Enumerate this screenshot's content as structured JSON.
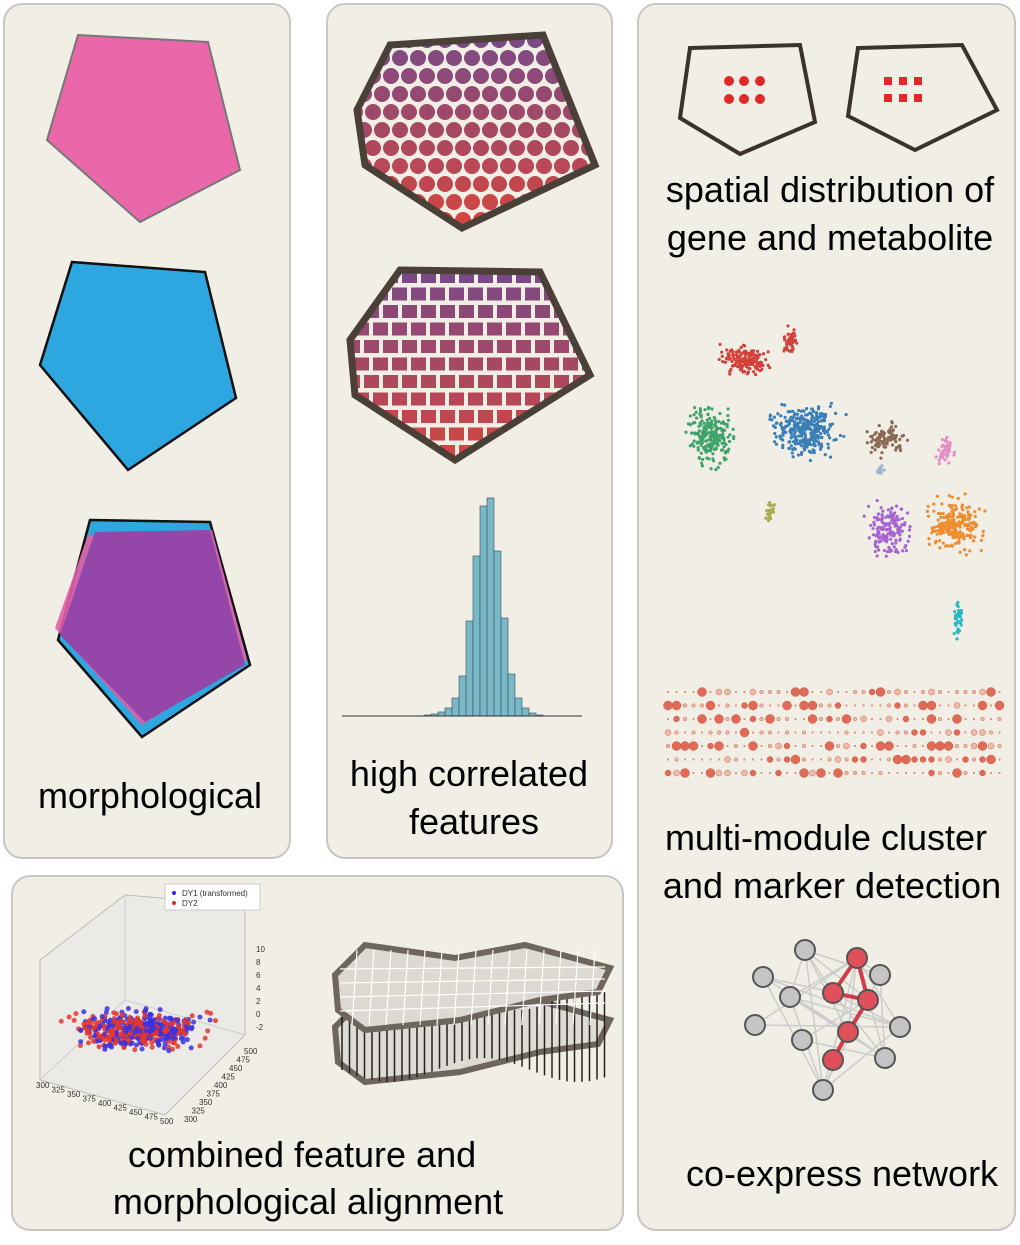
{
  "labels": {
    "morphological": "morphological",
    "correlated": [
      "high correlated",
      "features"
    ],
    "spatial": [
      "spatial distribution of",
      "gene and metabolite"
    ],
    "cluster": [
      "multi-module cluster",
      "and marker detection"
    ],
    "network": "co-express network",
    "alignment": [
      "combined feature and",
      "morphological alignment"
    ]
  },
  "plot3d": {
    "legend": [
      "DY1 (transformed)",
      "DY2"
    ],
    "xticks": [
      300,
      325,
      350,
      375,
      400,
      425,
      450,
      475,
      500
    ],
    "yticks": [
      300,
      325,
      350,
      375,
      400,
      425,
      450,
      475,
      500
    ],
    "zticks": [
      -2,
      0,
      2,
      4,
      6,
      8,
      10
    ]
  }
}
